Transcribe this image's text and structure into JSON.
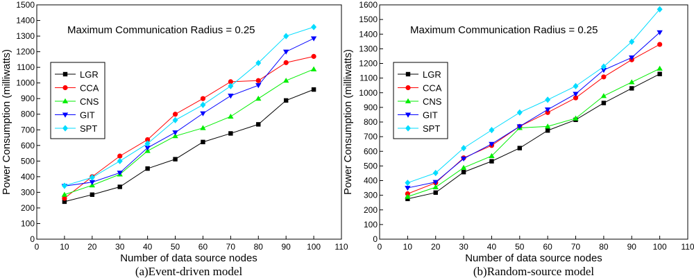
{
  "chart_data": [
    {
      "type": "line",
      "caption": "(a)Event-driven model",
      "annotation": "Maximum Communication Radius = 0.25",
      "xlabel": "Number of data source nodes",
      "ylabel": "Power Consumption (milliwatts)",
      "xlim": [
        0,
        110
      ],
      "ylim": [
        0,
        1500
      ],
      "xticks": [
        0,
        10,
        20,
        30,
        40,
        50,
        60,
        70,
        80,
        90,
        100,
        110
      ],
      "yticks": [
        0,
        100,
        200,
        300,
        400,
        500,
        600,
        700,
        800,
        900,
        1000,
        1100,
        1200,
        1300,
        1400,
        1500
      ],
      "x": [
        10,
        20,
        30,
        40,
        50,
        60,
        70,
        80,
        90,
        100
      ],
      "series": [
        {
          "name": "LGR",
          "color": "#000000",
          "marker": "square",
          "values": [
            240,
            285,
            335,
            452,
            512,
            622,
            677,
            735,
            888,
            958
          ]
        },
        {
          "name": "CCA",
          "color": "#ff0000",
          "marker": "circle",
          "values": [
            262,
            400,
            532,
            637,
            800,
            900,
            1008,
            1015,
            1130,
            1170
          ]
        },
        {
          "name": "CNS",
          "color": "#00ee00",
          "marker": "triangle-up",
          "values": [
            285,
            345,
            415,
            565,
            660,
            712,
            785,
            900,
            1015,
            1088
          ]
        },
        {
          "name": "GIT",
          "color": "#0000ff",
          "marker": "triangle-down",
          "values": [
            340,
            365,
            425,
            585,
            683,
            805,
            918,
            985,
            1200,
            1285
          ]
        },
        {
          "name": "SPT",
          "color": "#00dcff",
          "marker": "diamond",
          "values": [
            342,
            395,
            500,
            612,
            762,
            860,
            980,
            1128,
            1300,
            1358
          ]
        }
      ]
    },
    {
      "type": "line",
      "caption": "(b)Random-source model",
      "annotation": "Maximum Communication Radius = 0.25",
      "xlabel": "Number of data source nodes",
      "ylabel": "Power Consumption (milliwatts)",
      "xlim": [
        0,
        110
      ],
      "ylim": [
        0,
        1600
      ],
      "xticks": [
        0,
        10,
        20,
        30,
        40,
        50,
        60,
        70,
        80,
        90,
        100,
        110
      ],
      "yticks": [
        0,
        100,
        200,
        300,
        400,
        500,
        600,
        700,
        800,
        900,
        1000,
        1100,
        1200,
        1300,
        1400,
        1500,
        1600
      ],
      "x": [
        10,
        20,
        30,
        40,
        50,
        60,
        70,
        80,
        90,
        100
      ],
      "series": [
        {
          "name": "LGR",
          "color": "#000000",
          "marker": "square",
          "values": [
            275,
            318,
            458,
            532,
            622,
            742,
            815,
            930,
            1030,
            1128
          ]
        },
        {
          "name": "CCA",
          "color": "#ff0000",
          "marker": "circle",
          "values": [
            310,
            385,
            555,
            640,
            770,
            865,
            965,
            1108,
            1225,
            1330
          ]
        },
        {
          "name": "CNS",
          "color": "#00ee00",
          "marker": "triangle-up",
          "values": [
            290,
            355,
            488,
            568,
            760,
            770,
            825,
            978,
            1072,
            1165
          ]
        },
        {
          "name": "GIT",
          "color": "#0000ff",
          "marker": "triangle-down",
          "values": [
            350,
            390,
            550,
            650,
            770,
            885,
            992,
            1155,
            1240,
            1412
          ]
        },
        {
          "name": "SPT",
          "color": "#00dcff",
          "marker": "diamond",
          "values": [
            385,
            452,
            622,
            745,
            865,
            952,
            1045,
            1178,
            1348,
            1570
          ]
        }
      ]
    }
  ]
}
